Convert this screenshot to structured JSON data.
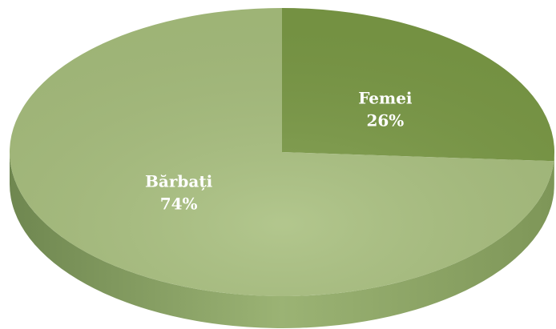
{
  "chart_data": {
    "type": "pie",
    "categories": [
      "Femei",
      "Bărbați"
    ],
    "values": [
      26,
      74
    ],
    "value_labels": [
      "26%",
      "74%"
    ],
    "colors": [
      "#7b9a46",
      "#a8bf7e"
    ]
  }
}
